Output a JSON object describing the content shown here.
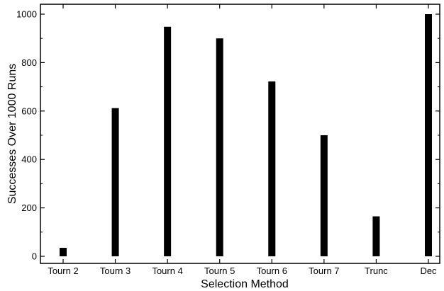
{
  "chart_data": {
    "type": "bar",
    "categories": [
      "Tourn 2",
      "Tourn 3",
      "Tourn 4",
      "Tourn 5",
      "Tourn 6",
      "Tourn 7",
      "Trunc",
      "Dec"
    ],
    "values": [
      35,
      612,
      948,
      900,
      722,
      500,
      165,
      1000
    ],
    "title": "",
    "xlabel": "Selection Method",
    "ylabel": "Successes Over 1000 Runs",
    "ylim": [
      0,
      1000
    ],
    "yticks": [
      0,
      200,
      400,
      600,
      800,
      1000
    ],
    "grid": false,
    "bar_color": "#000000"
  }
}
